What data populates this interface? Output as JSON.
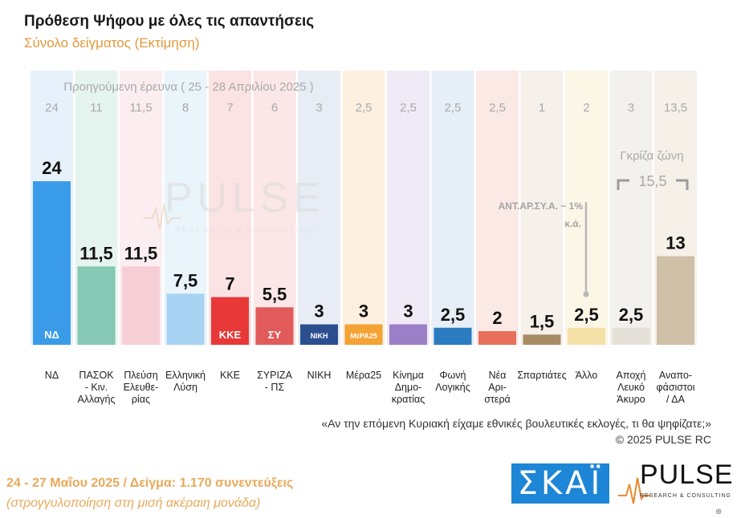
{
  "header": {
    "title": "Πρόθεση Ψήφου με όλες τις απαντήσεις",
    "subtitle": "Σύνολο δείγματος   (Εκτίμηση)"
  },
  "chart_data": {
    "type": "bar",
    "title": "Πρόθεση Ψήφου με όλες τις απαντήσεις",
    "subtitle": "Σύνολο δείγματος   (Εκτίμηση)",
    "previous_survey_label": "Προηγούμενη έρευνα ( 25 - 28 Απριλίου 2025 )",
    "categories": [
      [
        "ΝΔ"
      ],
      [
        "ΠΑΣΟΚ",
        "- Κιν.",
        "Αλλαγής"
      ],
      [
        "Πλεύση",
        "Ελευθε-",
        "ρίας"
      ],
      [
        "Ελληνική",
        "Λύση"
      ],
      [
        "ΚΚΕ"
      ],
      [
        "ΣΥΡΙΖΑ",
        "- ΠΣ"
      ],
      [
        "ΝΙΚΗ"
      ],
      [
        "Μέρα25"
      ],
      [
        "Κίνημα",
        "Δημο-",
        "κρατίας"
      ],
      [
        "Φωνή",
        "Λογικής"
      ],
      [
        "Νέα",
        "Αρι-",
        "στερά"
      ],
      [
        "Σπαρτιάτες"
      ],
      [
        "Άλλο"
      ],
      [
        "Αποχή",
        "Λευκό",
        "Άκυρο"
      ],
      [
        "Αναπο-",
        "φάσιστοι",
        "/ ΔΑ"
      ]
    ],
    "series": [
      {
        "name": "Προηγούμενη έρευνα ( 25 - 28 Απριλίου 2025 )",
        "values": [
          "24",
          "11",
          "11,5",
          "8",
          "7",
          "6",
          "3",
          "2,5",
          "2,5",
          "2,5",
          "2,5",
          "1",
          "2",
          "3",
          "13,5"
        ]
      },
      {
        "values": [
          24,
          11.5,
          11.5,
          7.5,
          7,
          5.5,
          3,
          3,
          3,
          2.5,
          2,
          1.5,
          2.5,
          2.5,
          13
        ]
      }
    ],
    "value_labels": [
      "24",
      "11,5",
      "11,5",
      "7,5",
      "7",
      "5,5",
      "3",
      "3",
      "3",
      "2,5",
      "2",
      "1,5",
      "2,5",
      "2,5",
      "13"
    ],
    "colors": [
      "#3a9be8",
      "#86c8b4",
      "#f6cfd6",
      "#a8d3f3",
      "#e83838",
      "#e25b5b",
      "#2b4f8e",
      "#f4a233",
      "#9b80c7",
      "#2a7bbf",
      "#e8705b",
      "#a88c66",
      "#f3e1a8",
      "#e4e0d8",
      "#cfbfa7"
    ],
    "column_tints": [
      "#e6f1fb",
      "#e6f4f0",
      "#fbedf0",
      "#eaf4fb",
      "#fbe3e3",
      "#fbe7e7",
      "#e8edf5",
      "#fdf0e0",
      "#efeaf6",
      "#e6eef7",
      "#fbe9e5",
      "#f5f0ea",
      "#fcf6e6",
      "#f3f1ee",
      "#f5f0e8"
    ],
    "logo_text": [
      "ΝΔ",
      "",
      "",
      "",
      "ΚΚΕ",
      "ΣΥ",
      "ΝΙΚΗ",
      "ΜέΡΑ25",
      "",
      "",
      "",
      "",
      "",
      "",
      ""
    ],
    "ylim": [
      0,
      24
    ],
    "annotations": {
      "grey_zone_label": "Γκρίζα ζώνη",
      "grey_zone_value": "15,5",
      "antarsya": "ΑΝΤ.ΑΡ.ΣΥ.Α. ~ 1%",
      "other_note": "κ.ά."
    },
    "watermark": {
      "main": "PULSE",
      "sub": "RESEARCH & CONSULTING"
    }
  },
  "footer": {
    "question": "«Αν την επόμενη Κυριακή είχαμε εθνικές βουλευτικές εκλογές, τι θα ψηφίζατε;»",
    "copyright": "©  2025  PULSE RC",
    "fieldwork": "24 - 27 Μαΐου 2025  /  Δείγμα:  1.170 συνεντεύξεις",
    "rounding": "(στρογγυλοποίηση στη μισή ακέραιη μονάδα)"
  },
  "logos": {
    "skai": "ΣΚΑΪ",
    "pulse": "PULSE",
    "pulse_sub": "RESEARCH & CONSULTING"
  }
}
